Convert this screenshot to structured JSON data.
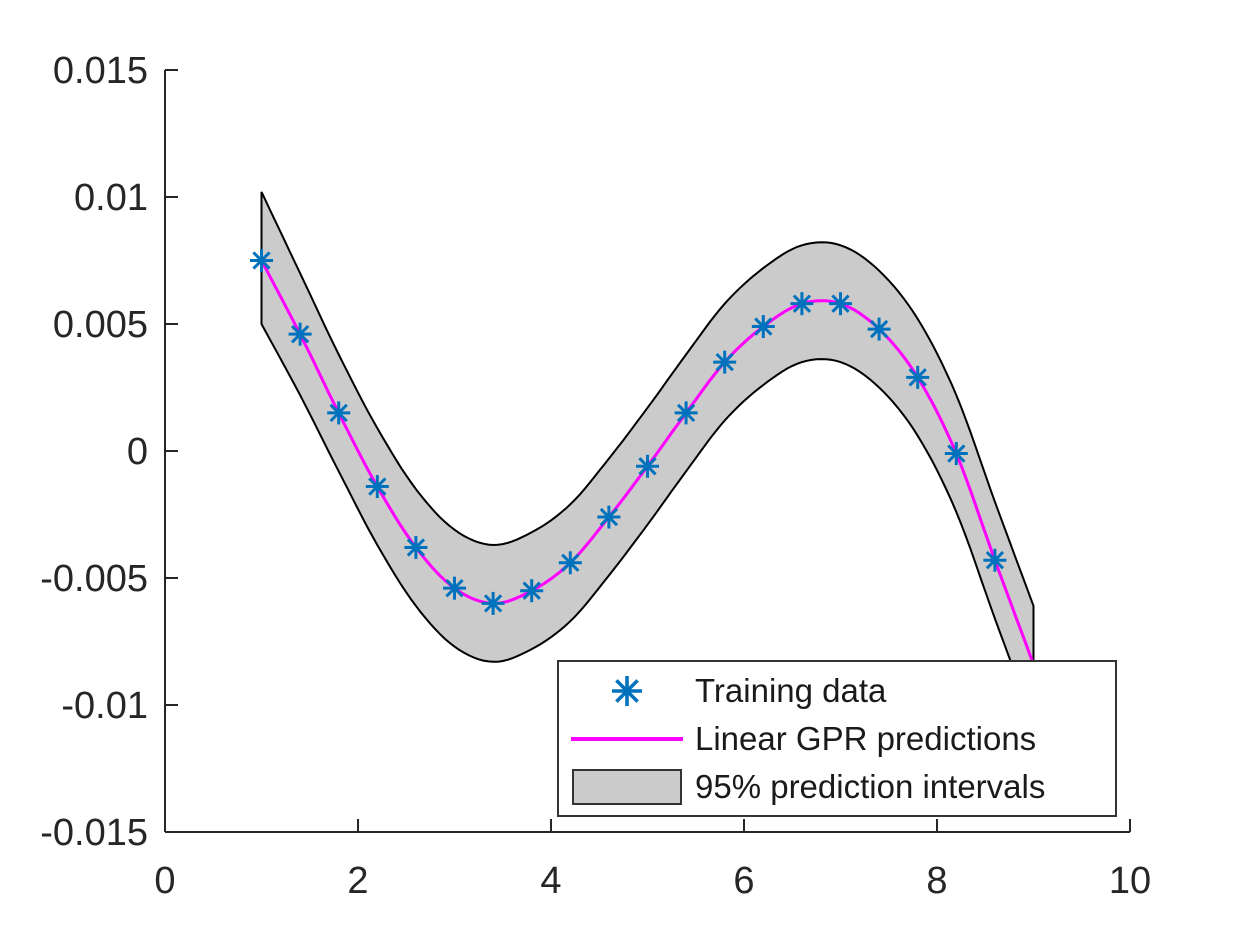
{
  "figure": {
    "background": "#ffffff"
  },
  "chart_data": {
    "type": "line",
    "title": "",
    "xlabel": "",
    "ylabel": "",
    "xlim": [
      0,
      10
    ],
    "ylim": [
      -0.015,
      0.015
    ],
    "grid": false,
    "x_ticks": [
      0,
      2,
      4,
      6,
      8,
      10
    ],
    "x_tick_labels": [
      "0",
      "2",
      "4",
      "6",
      "8",
      "10"
    ],
    "y_ticks": [
      -0.015,
      -0.01,
      -0.005,
      0,
      0.005,
      0.01,
      0.015
    ],
    "y_tick_labels": [
      "-0.015",
      "-0.01",
      "-0.005",
      "0",
      "0.005",
      "0.01",
      "0.015"
    ],
    "colors": {
      "marker": "#0072BD",
      "prediction_line": "#FF00FF",
      "band_fill": "#CBCBCB",
      "band_edge": "#000000",
      "axis": "#262626"
    },
    "legend": {
      "position": "south-east",
      "items": [
        {
          "label": "Training data",
          "marker": "asterisk"
        },
        {
          "label": "Linear GPR predictions",
          "marker": "line"
        },
        {
          "label": "95% prediction intervals",
          "marker": "patch"
        }
      ]
    },
    "series": [
      {
        "name": "Training data",
        "type": "scatter",
        "marker": "*",
        "x": [
          1.0,
          1.4,
          1.8,
          2.2,
          2.6,
          3.0,
          3.4,
          3.8,
          4.2,
          4.6,
          5.0,
          5.4,
          5.8,
          6.2,
          6.6,
          7.0,
          7.4,
          7.8,
          8.2,
          8.6
        ],
        "y": [
          0.0075,
          0.0046,
          0.0015,
          -0.0014,
          -0.0038,
          -0.0054,
          -0.006,
          -0.0055,
          -0.0044,
          -0.0026,
          -0.0006,
          0.0015,
          0.0035,
          0.0049,
          0.0058,
          0.0058,
          0.0048,
          0.0029,
          -0.0001,
          -0.0043
        ]
      },
      {
        "name": "Linear GPR predictions",
        "type": "line",
        "x": [
          1.0,
          1.4,
          1.8,
          2.2,
          2.6,
          3.0,
          3.4,
          3.8,
          4.2,
          4.6,
          5.0,
          5.4,
          5.8,
          6.2,
          6.6,
          7.0,
          7.4,
          7.8,
          8.2,
          8.6,
          9.0
        ],
        "y": [
          0.0075,
          0.0046,
          0.0015,
          -0.0014,
          -0.0038,
          -0.0054,
          -0.006,
          -0.0055,
          -0.0044,
          -0.0026,
          -0.0006,
          0.0015,
          0.0035,
          0.0049,
          0.0058,
          0.0058,
          0.0048,
          0.0029,
          -0.0001,
          -0.0043,
          -0.0084
        ]
      },
      {
        "name": "95% prediction intervals",
        "type": "band",
        "x": [
          1.0,
          1.4,
          1.8,
          2.2,
          2.6,
          3.0,
          3.4,
          3.8,
          4.2,
          4.6,
          5.0,
          5.4,
          5.8,
          6.2,
          6.6,
          7.0,
          7.4,
          7.8,
          8.2,
          8.6,
          9.0
        ],
        "upper": [
          0.0102,
          0.007,
          0.0038,
          0.0009,
          -0.0015,
          -0.0031,
          -0.0037,
          -0.0032,
          -0.0021,
          -0.0003,
          0.0017,
          0.0038,
          0.0058,
          0.0072,
          0.0081,
          0.0081,
          0.0071,
          0.0052,
          0.0022,
          -0.002,
          -0.0061
        ],
        "lower": [
          0.005,
          0.0022,
          -0.0008,
          -0.0037,
          -0.0061,
          -0.0077,
          -0.0083,
          -0.0078,
          -0.0067,
          -0.0049,
          -0.0029,
          -0.0008,
          0.0012,
          0.0026,
          0.0035,
          0.0035,
          0.0025,
          0.0006,
          -0.0024,
          -0.0066,
          -0.0107
        ]
      }
    ]
  }
}
